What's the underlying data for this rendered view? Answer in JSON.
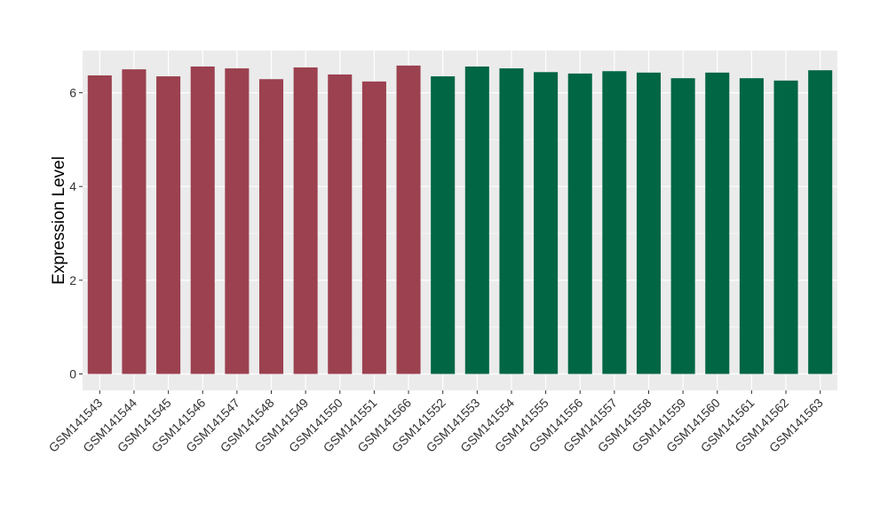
{
  "chart_data": {
    "type": "bar",
    "xlabel": "",
    "ylabel": "Expression Level",
    "ylim": [
      -0.35,
      6.9
    ],
    "yticks": [
      0,
      2,
      4,
      6
    ],
    "ytick_labels": [
      "0",
      "2",
      "4",
      "6"
    ],
    "grid": true,
    "legend": "none",
    "categories": [
      "GSM141543",
      "GSM141544",
      "GSM141545",
      "GSM141546",
      "GSM141547",
      "GSM141548",
      "GSM141549",
      "GSM141550",
      "GSM141551",
      "GSM141566",
      "GSM141552",
      "GSM141553",
      "GSM141554",
      "GSM141555",
      "GSM141556",
      "GSM141557",
      "GSM141558",
      "GSM141559",
      "GSM141560",
      "GSM141561",
      "GSM141562",
      "GSM141563"
    ],
    "values": [
      6.37,
      6.5,
      6.35,
      6.56,
      6.52,
      6.29,
      6.54,
      6.39,
      6.24,
      6.58,
      6.35,
      6.56,
      6.52,
      6.44,
      6.41,
      6.46,
      6.43,
      6.31,
      6.43,
      6.31,
      6.26,
      6.48
    ],
    "groups": [
      0,
      0,
      0,
      0,
      0,
      0,
      0,
      0,
      0,
      0,
      1,
      1,
      1,
      1,
      1,
      1,
      1,
      1,
      1,
      1,
      1,
      1
    ],
    "group_colors": [
      "#9b4150",
      "#006644"
    ],
    "panel_background": "#ebebeb",
    "grid_color": "#ffffff"
  }
}
